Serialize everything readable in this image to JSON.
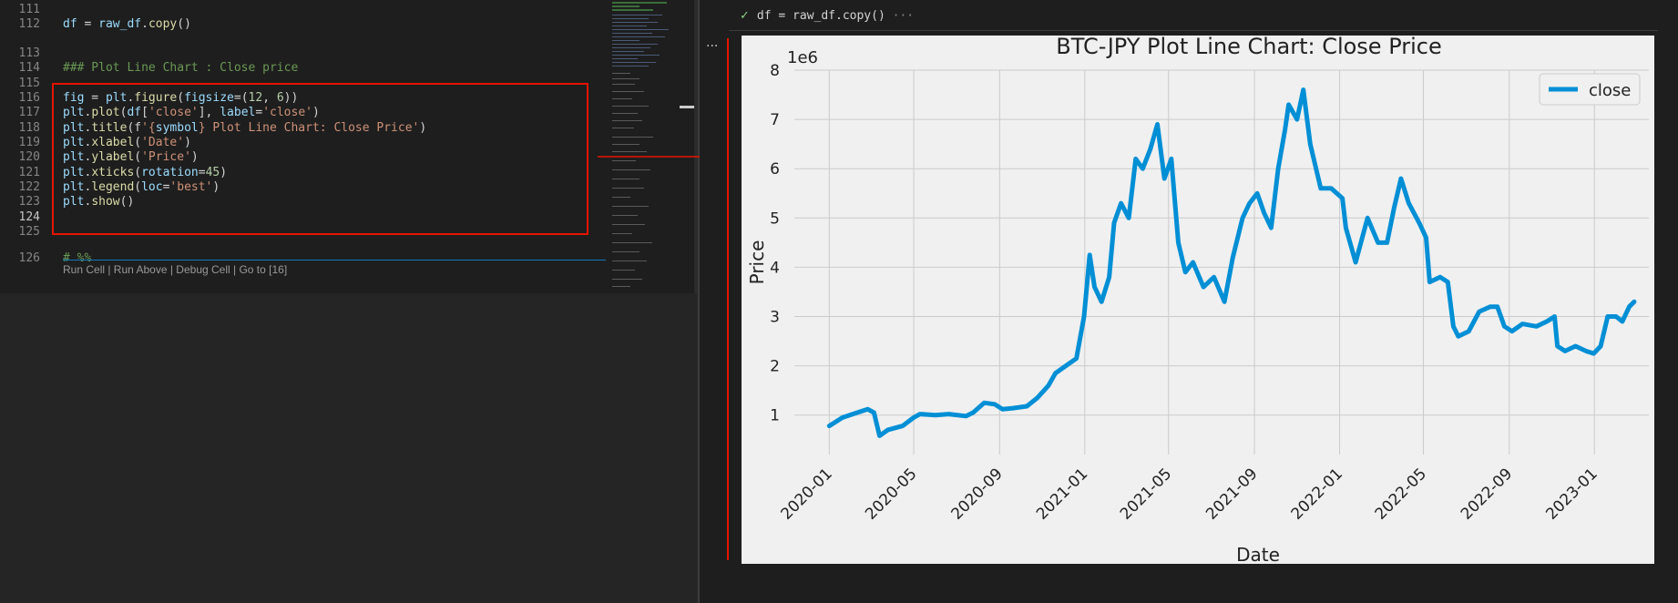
{
  "editor": {
    "lines": [
      {
        "num": "111",
        "code": ""
      },
      {
        "num": "112",
        "code": "df = raw_df.copy()"
      },
      {
        "num": "113",
        "code": ""
      },
      {
        "num": "114",
        "code": "### Plot Line Chart : Close price"
      },
      {
        "num": "115",
        "code": ""
      },
      {
        "num": "116",
        "code": "fig = plt.figure(figsize=(12, 6))"
      },
      {
        "num": "117",
        "code": "plt.plot(df['close'], label='close')"
      },
      {
        "num": "118",
        "code": "plt.title(f'{symbol} Plot Line Chart: Close Price')"
      },
      {
        "num": "119",
        "code": "plt.xlabel('Date')"
      },
      {
        "num": "120",
        "code": "plt.ylabel('Price')"
      },
      {
        "num": "121",
        "code": "plt.xticks(rotation=45)"
      },
      {
        "num": "122",
        "code": "plt.legend(loc='best')"
      },
      {
        "num": "123",
        "code": "plt.show()"
      },
      {
        "num": "124",
        "code": ""
      },
      {
        "num": "125",
        "code": ""
      },
      {
        "num": "126",
        "code": "# %%"
      }
    ],
    "codelens": "Run Cell | Run Above | Debug Cell | Go to [16]"
  },
  "output": {
    "cell_source": "df = raw_df.copy()",
    "ellipsis": "···",
    "more": "···"
  },
  "colors": {
    "accent_red": "#e51400",
    "line_blue": "#008fd5",
    "check_green": "#89d185"
  },
  "chart_data": {
    "type": "line",
    "title": "BTC-JPY Plot Line Chart: Close Price",
    "xlabel": "Date",
    "ylabel": "Price",
    "y_multiplier": "1e6",
    "ylim": [
      0.2,
      8
    ],
    "xlim": [
      "2019-11-12",
      "2023-03-20"
    ],
    "grid": true,
    "legend_position": "top-right",
    "x_ticks": [
      "2020-01",
      "2020-05",
      "2020-09",
      "2021-01",
      "2021-05",
      "2021-09",
      "2022-01",
      "2022-05",
      "2022-09",
      "2023-01"
    ],
    "y_ticks": [
      "1",
      "2",
      "3",
      "4",
      "5",
      "6",
      "7",
      "8"
    ],
    "series": [
      {
        "name": "close",
        "color": "#008fd5",
        "points": [
          [
            "2020-01-01",
            0.78
          ],
          [
            "2020-01-20",
            0.95
          ],
          [
            "2020-02-10",
            1.05
          ],
          [
            "2020-02-25",
            1.12
          ],
          [
            "2020-03-05",
            1.05
          ],
          [
            "2020-03-13",
            0.58
          ],
          [
            "2020-03-25",
            0.7
          ],
          [
            "2020-04-15",
            0.78
          ],
          [
            "2020-05-01",
            0.95
          ],
          [
            "2020-05-10",
            1.02
          ],
          [
            "2020-06-01",
            1.0
          ],
          [
            "2020-06-20",
            1.02
          ],
          [
            "2020-07-15",
            0.98
          ],
          [
            "2020-07-25",
            1.05
          ],
          [
            "2020-08-10",
            1.25
          ],
          [
            "2020-08-25",
            1.22
          ],
          [
            "2020-09-05",
            1.12
          ],
          [
            "2020-09-20",
            1.14
          ],
          [
            "2020-10-10",
            1.18
          ],
          [
            "2020-10-25",
            1.35
          ],
          [
            "2020-11-10",
            1.6
          ],
          [
            "2020-11-20",
            1.85
          ],
          [
            "2020-12-05",
            2.0
          ],
          [
            "2020-12-20",
            2.15
          ],
          [
            "2020-12-31",
            3.0
          ],
          [
            "2021-01-08",
            4.25
          ],
          [
            "2021-01-15",
            3.6
          ],
          [
            "2021-01-25",
            3.3
          ],
          [
            "2021-02-05",
            3.8
          ],
          [
            "2021-02-12",
            4.9
          ],
          [
            "2021-02-22",
            5.3
          ],
          [
            "2021-03-05",
            5.0
          ],
          [
            "2021-03-15",
            6.2
          ],
          [
            "2021-03-25",
            6.0
          ],
          [
            "2021-04-05",
            6.4
          ],
          [
            "2021-04-15",
            6.9
          ],
          [
            "2021-04-25",
            5.8
          ],
          [
            "2021-05-05",
            6.2
          ],
          [
            "2021-05-15",
            4.5
          ],
          [
            "2021-05-25",
            3.9
          ],
          [
            "2021-06-05",
            4.1
          ],
          [
            "2021-06-20",
            3.6
          ],
          [
            "2021-07-05",
            3.8
          ],
          [
            "2021-07-20",
            3.3
          ],
          [
            "2021-08-01",
            4.2
          ],
          [
            "2021-08-15",
            5.0
          ],
          [
            "2021-08-25",
            5.3
          ],
          [
            "2021-09-05",
            5.5
          ],
          [
            "2021-09-15",
            5.1
          ],
          [
            "2021-09-25",
            4.8
          ],
          [
            "2021-10-05",
            6.0
          ],
          [
            "2021-10-15",
            6.8
          ],
          [
            "2021-10-20",
            7.3
          ],
          [
            "2021-11-01",
            7.0
          ],
          [
            "2021-11-10",
            7.6
          ],
          [
            "2021-11-20",
            6.5
          ],
          [
            "2021-12-05",
            5.6
          ],
          [
            "2021-12-20",
            5.6
          ],
          [
            "2022-01-05",
            5.4
          ],
          [
            "2022-01-10",
            4.8
          ],
          [
            "2022-01-24",
            4.1
          ],
          [
            "2022-02-10",
            5.0
          ],
          [
            "2022-02-25",
            4.5
          ],
          [
            "2022-03-10",
            4.5
          ],
          [
            "2022-03-20",
            5.2
          ],
          [
            "2022-03-30",
            5.8
          ],
          [
            "2022-04-10",
            5.3
          ],
          [
            "2022-04-25",
            4.9
          ],
          [
            "2022-05-05",
            4.6
          ],
          [
            "2022-05-10",
            3.7
          ],
          [
            "2022-05-25",
            3.8
          ],
          [
            "2022-06-05",
            3.7
          ],
          [
            "2022-06-13",
            2.8
          ],
          [
            "2022-06-20",
            2.6
          ],
          [
            "2022-07-05",
            2.7
          ],
          [
            "2022-07-20",
            3.1
          ],
          [
            "2022-08-05",
            3.2
          ],
          [
            "2022-08-15",
            3.2
          ],
          [
            "2022-08-25",
            2.8
          ],
          [
            "2022-09-05",
            2.7
          ],
          [
            "2022-09-20",
            2.85
          ],
          [
            "2022-10-10",
            2.8
          ],
          [
            "2022-10-25",
            2.9
          ],
          [
            "2022-11-05",
            3.0
          ],
          [
            "2022-11-09",
            2.4
          ],
          [
            "2022-11-20",
            2.3
          ],
          [
            "2022-12-05",
            2.4
          ],
          [
            "2022-12-20",
            2.3
          ],
          [
            "2022-12-31",
            2.25
          ],
          [
            "2023-01-10",
            2.4
          ],
          [
            "2023-01-20",
            3.0
          ],
          [
            "2023-02-01",
            3.0
          ],
          [
            "2023-02-10",
            2.9
          ],
          [
            "2023-02-20",
            3.2
          ],
          [
            "2023-02-27",
            3.3
          ]
        ]
      }
    ]
  }
}
